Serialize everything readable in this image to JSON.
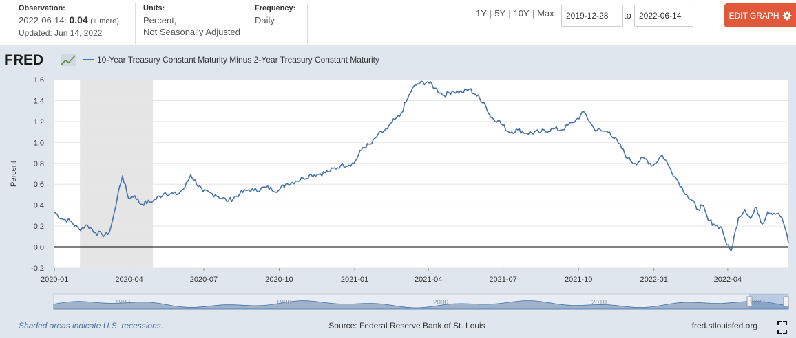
{
  "header": {
    "observation_label": "Observation:",
    "observation_date": "2022-06-14:",
    "observation_value": "0.04",
    "observation_more": "(+ more)",
    "updated": "Updated: Jun 14, 2022",
    "units_label": "Units:",
    "units_line1": "Percent,",
    "units_line2": "Not Seasonally Adjusted",
    "frequency_label": "Frequency:",
    "frequency_value": "Daily",
    "range_buttons": [
      "1Y",
      "5Y",
      "10Y",
      "Max"
    ],
    "start_date": "2019-12-28",
    "to_label": "to",
    "end_date": "2022-06-14",
    "edit_button": "EDIT GRAPH"
  },
  "footer": {
    "recession_note": "Shaded areas indicate U.S. recessions.",
    "source": "Source: Federal Reserve Bank of St. Louis",
    "site": "fred.stlouisfed.org"
  },
  "colors": {
    "line": "#4572a7",
    "edit_button": "#e1593a",
    "chart_background": "#dfe6ee",
    "plot_background": "#ffffff",
    "recession": "#e5e5e5"
  },
  "icons": {
    "settings": "gear-icon",
    "fullscreen": "fullscreen-icon",
    "logo": "fred-logo"
  },
  "chart_data": {
    "type": "line",
    "logo": "FRED",
    "legend": "10-Year Treasury Constant Maturity Minus 2-Year Treasury Constant Maturity",
    "ylabel": "Percent",
    "xlabel": "",
    "ylim": [
      -0.2,
      1.6
    ],
    "yticks": [
      -0.2,
      0.0,
      0.2,
      0.4,
      0.6,
      0.8,
      1.0,
      1.2,
      1.4,
      1.6
    ],
    "xlim": [
      "2019-12-31",
      "2022-06-14"
    ],
    "xticks": [
      "2020-01",
      "2020-04",
      "2020-07",
      "2020-10",
      "2021-01",
      "2021-04",
      "2021-07",
      "2021-10",
      "2022-01",
      "2022-04"
    ],
    "recessions": [
      [
        "2020-02-01",
        "2020-04-30"
      ]
    ],
    "navigator_labels": [
      "1980",
      "1990",
      "2000",
      "2010",
      "2020"
    ],
    "series": [
      {
        "name": "10-Year Treasury Constant Maturity Minus 2-Year Treasury Constant Maturity",
        "x": [
          "2019-12-31",
          "2020-01-10",
          "2020-01-20",
          "2020-01-31",
          "2020-02-10",
          "2020-02-20",
          "2020-02-28",
          "2020-03-06",
          "2020-03-10",
          "2020-03-16",
          "2020-03-20",
          "2020-03-24",
          "2020-03-31",
          "2020-04-08",
          "2020-04-15",
          "2020-04-30",
          "2020-05-15",
          "2020-05-29",
          "2020-06-08",
          "2020-06-15",
          "2020-06-30",
          "2020-07-15",
          "2020-07-31",
          "2020-08-14",
          "2020-08-25",
          "2020-08-31",
          "2020-09-15",
          "2020-09-30",
          "2020-10-09",
          "2020-10-21",
          "2020-10-30",
          "2020-11-09",
          "2020-11-20",
          "2020-11-30",
          "2020-12-15",
          "2020-12-31",
          "2021-01-11",
          "2021-01-22",
          "2021-01-29",
          "2021-02-10",
          "2021-02-19",
          "2021-02-25",
          "2021-03-05",
          "2021-03-12",
          "2021-03-19",
          "2021-03-31",
          "2021-04-09",
          "2021-04-20",
          "2021-04-30",
          "2021-05-12",
          "2021-05-21",
          "2021-05-28",
          "2021-06-08",
          "2021-06-16",
          "2021-06-25",
          "2021-07-08",
          "2021-07-19",
          "2021-07-30",
          "2021-08-16",
          "2021-08-31",
          "2021-09-10",
          "2021-09-24",
          "2021-09-30",
          "2021-10-08",
          "2021-10-20",
          "2021-10-29",
          "2021-11-08",
          "2021-11-19",
          "2021-11-30",
          "2021-12-09",
          "2021-12-20",
          "2021-12-31",
          "2022-01-11",
          "2022-01-21",
          "2022-01-31",
          "2022-02-10",
          "2022-02-24",
          "2022-03-01",
          "2022-03-08",
          "2022-03-15",
          "2022-03-25",
          "2022-03-31",
          "2022-04-05",
          "2022-04-14",
          "2022-04-22",
          "2022-04-29",
          "2022-05-06",
          "2022-05-13",
          "2022-05-20",
          "2022-05-31",
          "2022-06-06",
          "2022-06-10",
          "2022-06-14"
        ],
        "values": [
          0.34,
          0.27,
          0.25,
          0.17,
          0.21,
          0.14,
          0.12,
          0.12,
          0.2,
          0.4,
          0.57,
          0.68,
          0.47,
          0.49,
          0.41,
          0.44,
          0.52,
          0.5,
          0.57,
          0.69,
          0.53,
          0.5,
          0.44,
          0.51,
          0.55,
          0.54,
          0.57,
          0.54,
          0.6,
          0.63,
          0.66,
          0.69,
          0.7,
          0.72,
          0.78,
          0.8,
          0.95,
          0.99,
          1.07,
          1.13,
          1.22,
          1.25,
          1.39,
          1.51,
          1.56,
          1.58,
          1.52,
          1.45,
          1.49,
          1.48,
          1.51,
          1.46,
          1.38,
          1.24,
          1.21,
          1.1,
          1.12,
          1.09,
          1.1,
          1.13,
          1.12,
          1.19,
          1.23,
          1.29,
          1.13,
          1.11,
          1.1,
          0.99,
          0.85,
          0.8,
          0.85,
          0.78,
          0.88,
          0.75,
          0.62,
          0.5,
          0.36,
          0.4,
          0.26,
          0.22,
          0.18,
          0.02,
          -0.04,
          0.28,
          0.36,
          0.27,
          0.38,
          0.22,
          0.34,
          0.32,
          0.28,
          0.18,
          0.04
        ]
      }
    ]
  }
}
